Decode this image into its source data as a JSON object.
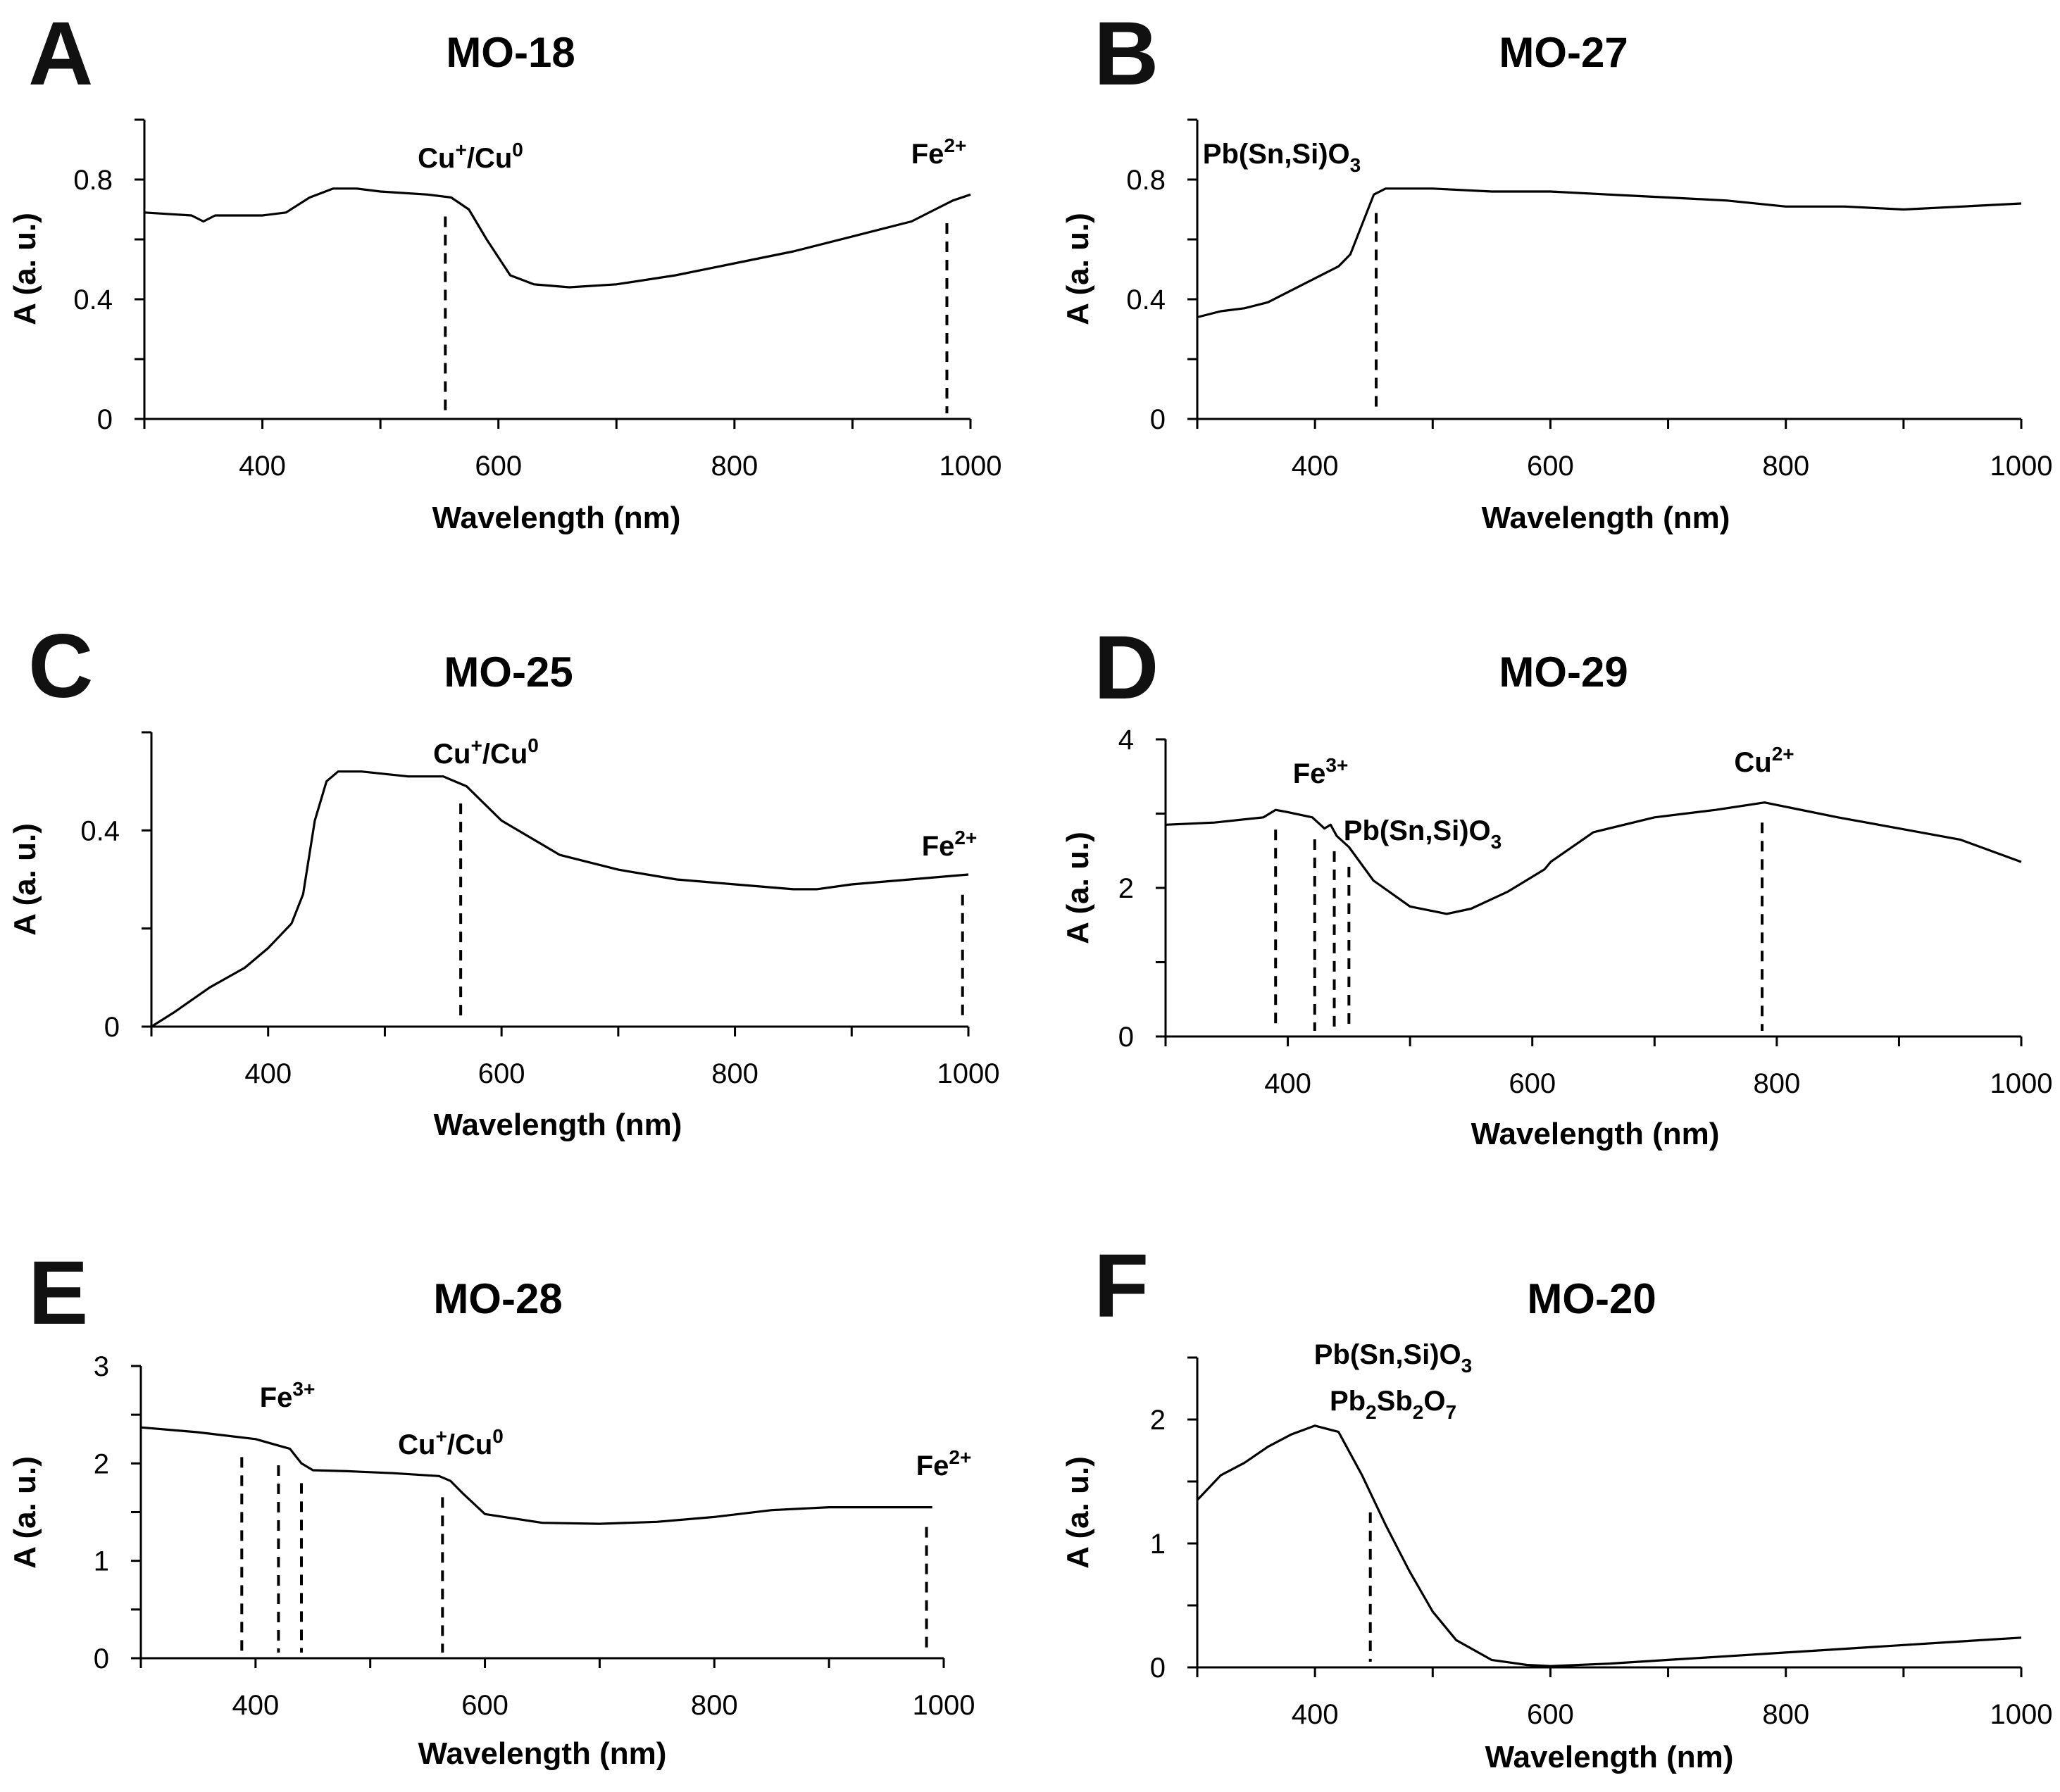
{
  "figure": {
    "panels": [
      {
        "letter": "A",
        "title": "MO-18",
        "xlabel": "Wavelength (nm)",
        "ylabel": "A (a. u.)",
        "annotations": [
          {
            "base": "Cu",
            "sup": "+",
            "after": "/Cu",
            "sup2": "0"
          },
          {
            "base": "Fe",
            "sup": "2+"
          }
        ]
      },
      {
        "letter": "B",
        "title": "MO-27",
        "xlabel": "Wavelength (nm)",
        "ylabel": "A (a. u.)",
        "annotations": [
          {
            "base": "Pb(Sn,Si)O",
            "sub": "3"
          }
        ]
      },
      {
        "letter": "C",
        "title": "MO-25",
        "xlabel": "Wavelength (nm)",
        "ylabel": "A (a. u.)",
        "annotations": [
          {
            "base": "Cu",
            "sup": "+",
            "after": "/Cu",
            "sup2": "0"
          },
          {
            "base": "Fe",
            "sup": "2+"
          }
        ]
      },
      {
        "letter": "D",
        "title": "MO-29",
        "xlabel": "Wavelength (nm)",
        "ylabel": "A (a. u.)",
        "annotations": [
          {
            "base": "Fe",
            "sup": "3+"
          },
          {
            "base": "Pb(Sn,Si)O",
            "sub": "3"
          },
          {
            "base": "Cu",
            "sup": "2+"
          }
        ]
      },
      {
        "letter": "E",
        "title": "MO-28",
        "xlabel": "Wavelength (nm)",
        "ylabel": "A (a. u.)",
        "annotations": [
          {
            "base": "Fe",
            "sup": "3+"
          },
          {
            "base": "Cu",
            "sup": "+",
            "after": "/Cu",
            "sup2": "0"
          },
          {
            "base": "Fe",
            "sup": "2+"
          }
        ]
      },
      {
        "letter": "F",
        "title": "MO-20",
        "xlabel": "Wavelength (nm)",
        "ylabel": "A (a. u.)",
        "annotations": [
          {
            "base": "Pb(Sn,Si)O",
            "sub": "3"
          },
          {
            "base": "Pb",
            "sub": "2",
            "after": "Sb",
            "sub2": "2",
            "after2": "O",
            "sub3": "7"
          }
        ]
      }
    ]
  },
  "chart_data": [
    {
      "type": "line",
      "panel": "A",
      "title": "MO-18",
      "xlabel": "Wavelength (nm)",
      "ylabel": "A (a. u.)",
      "xlim": [
        300,
        1000
      ],
      "ylim": [
        0,
        1.0
      ],
      "xticks": [
        400,
        600,
        800,
        1000
      ],
      "yticks": [
        0,
        0.4,
        0.8
      ],
      "series": [
        {
          "x": [
            300,
            340,
            350,
            360,
            400,
            420,
            440,
            460,
            480,
            500,
            540,
            560,
            575,
            590,
            610,
            630,
            660,
            700,
            750,
            800,
            850,
            900,
            950,
            970,
            985,
            1000
          ],
          "y": [
            0.69,
            0.68,
            0.66,
            0.68,
            0.68,
            0.69,
            0.74,
            0.77,
            0.77,
            0.76,
            0.75,
            0.74,
            0.7,
            0.6,
            0.48,
            0.45,
            0.44,
            0.45,
            0.48,
            0.52,
            0.56,
            0.61,
            0.66,
            0.7,
            0.73,
            0.75
          ]
        }
      ],
      "markers": [
        555,
        980
      ]
    },
    {
      "type": "line",
      "panel": "B",
      "title": "MO-27",
      "xlabel": "Wavelength (nm)",
      "ylabel": "A (a. u.)",
      "xlim": [
        300,
        1000
      ],
      "ylim": [
        0,
        1.0
      ],
      "xticks": [
        400,
        600,
        800,
        1000
      ],
      "yticks": [
        0,
        0.4,
        0.8
      ],
      "series": [
        {
          "x": [
            300,
            320,
            340,
            360,
            380,
            400,
            420,
            430,
            440,
            450,
            460,
            480,
            500,
            550,
            600,
            650,
            700,
            750,
            800,
            850,
            900,
            950,
            1000
          ],
          "y": [
            0.34,
            0.36,
            0.37,
            0.39,
            0.43,
            0.47,
            0.51,
            0.55,
            0.65,
            0.75,
            0.77,
            0.77,
            0.77,
            0.76,
            0.76,
            0.75,
            0.74,
            0.73,
            0.71,
            0.71,
            0.7,
            0.71,
            0.72
          ]
        }
      ],
      "markers": [
        452
      ]
    },
    {
      "type": "line",
      "panel": "C",
      "title": "MO-25",
      "xlabel": "Wavelength (nm)",
      "ylabel": "A (a. u.)",
      "xlim": [
        300,
        1000
      ],
      "ylim": [
        0,
        0.6
      ],
      "xticks": [
        400,
        600,
        800,
        1000
      ],
      "yticks": [
        0,
        0.4
      ],
      "series": [
        {
          "x": [
            300,
            320,
            350,
            380,
            400,
            420,
            430,
            440,
            450,
            460,
            480,
            520,
            550,
            570,
            600,
            650,
            700,
            750,
            800,
            850,
            870,
            900,
            950,
            1000
          ],
          "y": [
            0,
            0.03,
            0.08,
            0.12,
            0.16,
            0.21,
            0.27,
            0.42,
            0.5,
            0.52,
            0.52,
            0.51,
            0.51,
            0.49,
            0.42,
            0.35,
            0.32,
            0.3,
            0.29,
            0.28,
            0.28,
            0.29,
            0.3,
            0.31
          ]
        }
      ],
      "markers": [
        565,
        995
      ]
    },
    {
      "type": "line",
      "panel": "D",
      "title": "MO-29",
      "xlabel": "Wavelength (nm)",
      "ylabel": "A (a. u.)",
      "xlim": [
        300,
        1000
      ],
      "ylim": [
        0,
        4
      ],
      "xticks": [
        400,
        600,
        800,
        1000
      ],
      "yticks": [
        0,
        2,
        4
      ],
      "series": [
        {
          "x": [
            300,
            340,
            380,
            390,
            400,
            420,
            430,
            435,
            440,
            450,
            470,
            500,
            530,
            550,
            580,
            610,
            615,
            650,
            700,
            750,
            790,
            850,
            900,
            950,
            1000
          ],
          "y": [
            2.85,
            2.88,
            2.95,
            3.05,
            3.02,
            2.95,
            2.8,
            2.85,
            2.7,
            2.55,
            2.1,
            1.75,
            1.65,
            1.72,
            1.95,
            2.25,
            2.35,
            2.75,
            2.95,
            3.05,
            3.15,
            2.95,
            2.8,
            2.65,
            2.35
          ]
        }
      ],
      "markers": [
        390,
        422,
        438,
        450,
        788
      ]
    },
    {
      "type": "line",
      "panel": "E",
      "title": "MO-28",
      "xlabel": "Wavelength (nm)",
      "ylabel": "A (a. u.)",
      "xlim": [
        300,
        1000
      ],
      "ylim": [
        0,
        3
      ],
      "xticks": [
        400,
        600,
        800,
        1000
      ],
      "yticks": [
        0,
        1,
        2,
        3
      ],
      "series": [
        {
          "x": [
            300,
            350,
            400,
            430,
            440,
            450,
            480,
            520,
            560,
            570,
            580,
            600,
            650,
            700,
            750,
            800,
            850,
            900,
            950,
            990
          ],
          "y": [
            2.37,
            2.32,
            2.25,
            2.15,
            2.0,
            1.93,
            1.92,
            1.9,
            1.87,
            1.82,
            1.7,
            1.48,
            1.39,
            1.38,
            1.4,
            1.45,
            1.52,
            1.55,
            1.55,
            1.55
          ]
        }
      ],
      "markers": [
        388,
        420,
        440,
        563,
        985
      ]
    },
    {
      "type": "line",
      "panel": "F",
      "title": "MO-20",
      "xlabel": "Wavelength (nm)",
      "ylabel": "A (a. u.)",
      "xlim": [
        300,
        1000
      ],
      "ylim": [
        0,
        2.5
      ],
      "xticks": [
        400,
        600,
        800,
        1000
      ],
      "yticks": [
        0,
        1,
        2
      ],
      "series": [
        {
          "x": [
            300,
            320,
            340,
            360,
            380,
            400,
            420,
            440,
            460,
            480,
            500,
            520,
            550,
            580,
            600,
            650,
            700,
            750,
            800,
            850,
            900,
            950,
            1000
          ],
          "y": [
            1.35,
            1.55,
            1.65,
            1.78,
            1.88,
            1.95,
            1.9,
            1.55,
            1.15,
            0.78,
            0.45,
            0.22,
            0.06,
            0.02,
            0.01,
            0.03,
            0.06,
            0.09,
            0.12,
            0.15,
            0.18,
            0.21,
            0.24
          ]
        }
      ],
      "markers": [
        447
      ]
    }
  ]
}
